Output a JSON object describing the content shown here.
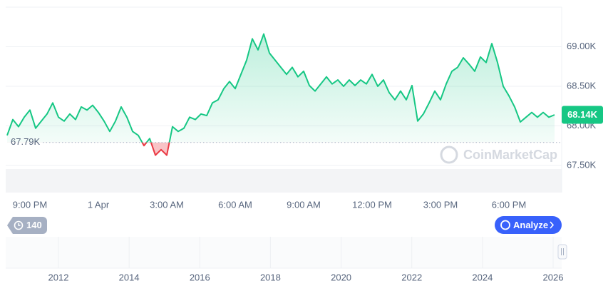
{
  "chart_data": {
    "type": "line",
    "watermark": "CoinMarketCap",
    "x": [
      null,
      null,
      null,
      null,
      "9:00 PM",
      null,
      null,
      null,
      null,
      null,
      null,
      null,
      null,
      null,
      null,
      null,
      "1 Apr",
      null,
      null,
      null,
      null,
      null,
      null,
      null,
      null,
      null,
      null,
      null,
      "3:00 AM",
      null,
      null,
      null,
      null,
      null,
      null,
      null,
      null,
      null,
      null,
      null,
      "6:00 AM",
      null,
      null,
      null,
      null,
      null,
      null,
      null,
      null,
      null,
      null,
      null,
      "9:00 AM",
      null,
      null,
      null,
      null,
      null,
      null,
      null,
      null,
      null,
      null,
      null,
      "12:00 PM",
      null,
      null,
      null,
      null,
      null,
      null,
      null,
      null,
      null,
      null,
      null,
      "3:00 PM",
      null,
      null,
      null,
      null,
      null,
      null,
      null,
      null,
      null,
      null,
      null,
      "6:00 PM",
      null,
      null,
      null,
      null,
      null,
      null,
      null,
      null
    ],
    "values": [
      67.88,
      68.08,
      67.99,
      68.11,
      68.2,
      67.97,
      68.06,
      68.15,
      68.29,
      68.11,
      68.06,
      68.15,
      68.08,
      68.24,
      68.2,
      68.26,
      68.17,
      68.06,
      67.93,
      68.06,
      68.24,
      68.11,
      67.93,
      67.88,
      67.75,
      67.84,
      67.63,
      67.7,
      67.63,
      67.99,
      67.93,
      67.97,
      68.11,
      68.08,
      68.15,
      68.13,
      68.29,
      68.33,
      68.47,
      68.56,
      68.47,
      68.65,
      68.83,
      69.1,
      68.96,
      69.16,
      68.92,
      68.83,
      68.74,
      68.65,
      68.74,
      68.62,
      68.69,
      68.51,
      68.44,
      68.53,
      68.62,
      68.53,
      68.58,
      68.5,
      68.58,
      68.51,
      68.58,
      68.53,
      68.65,
      68.5,
      68.58,
      68.42,
      68.33,
      68.44,
      68.33,
      68.51,
      68.06,
      68.15,
      68.29,
      68.44,
      68.33,
      68.53,
      68.69,
      68.74,
      68.86,
      68.78,
      68.69,
      68.87,
      68.8,
      69.04,
      68.8,
      68.5,
      68.38,
      68.24,
      68.05,
      68.11,
      68.17,
      68.11,
      68.17,
      68.11,
      68.14
    ],
    "color": "#16c784",
    "below_color": "#ea3943",
    "ylim": [
      67.5,
      69.5
    ],
    "yticks": [
      {
        "value": 67.5,
        "label": "67.50K"
      },
      {
        "value": 68.0,
        "label": "68.00K"
      },
      {
        "value": 68.5,
        "label": "68.50K"
      },
      {
        "value": 69.0,
        "label": "69.00K"
      }
    ],
    "grid": true,
    "reference": {
      "value": 67.79,
      "label": "67.79K"
    },
    "current": {
      "value": 68.14,
      "label": "68.14K"
    },
    "navigator_years": [
      "2012",
      "2014",
      "2016",
      "2018",
      "2020",
      "2022",
      "2024",
      "2026"
    ]
  },
  "controls": {
    "history": "140",
    "analyze": "Analyze"
  }
}
